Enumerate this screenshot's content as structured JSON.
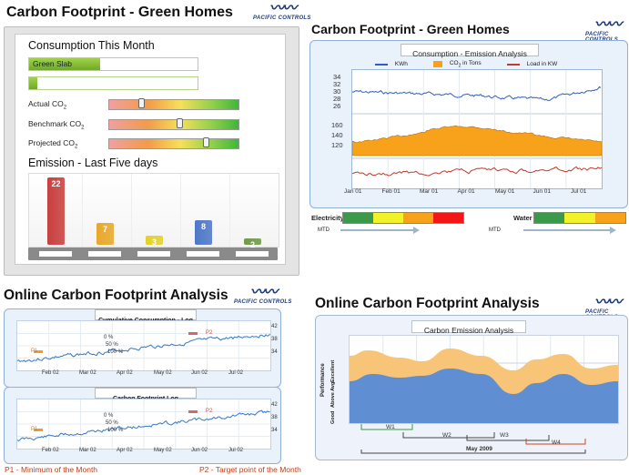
{
  "logo": {
    "text": "PACIFIC CONTROLS"
  },
  "panel1": {
    "title": "Carbon Footprint - Green Homes",
    "consumption_title": "Consumption This Month",
    "slab_label": "Green Slab",
    "slab_fill": 0.42,
    "second_slab_fill": 0.05,
    "gauges": [
      {
        "label": "Actual CO",
        "sub": "2",
        "level": 0.25
      },
      {
        "label": "Benchmark CO",
        "sub": "2",
        "level": 0.55
      },
      {
        "label": "Projected CO",
        "sub": "2",
        "level": 0.75
      }
    ],
    "emission_title": "Emission - Last Five days",
    "bars": [
      {
        "label": "22",
        "value": 22,
        "color": "#c8403f"
      },
      {
        "label": "7",
        "value": 7,
        "color": "#e8a82b"
      },
      {
        "label": "3",
        "value": 3,
        "color": "#e3d12a"
      },
      {
        "label": "8",
        "value": 8,
        "color": "#4f78c8"
      },
      {
        "label": "2",
        "value": 2,
        "color": "#6f9a48"
      }
    ]
  },
  "panel2": {
    "title": "Carbon Footprint - Green Homes",
    "chart_title": "Consumption - Emission Analysis",
    "legend": [
      "KWh",
      "CO",
      "2",
      " in Tons",
      "Load in KW"
    ],
    "yticks_top": [
      "34",
      "32",
      "30",
      "28",
      "26"
    ],
    "yticks_mid": [
      "160",
      "140",
      "120"
    ],
    "xticks": [
      "Jan 01",
      "Feb 01",
      "Mar 01",
      "Apr 01",
      "May 01",
      "Jun 01",
      "Jul 01"
    ],
    "electricity_label": "Electricity",
    "water_label": "Water",
    "mtd": "MTD",
    "electricity_colors": [
      "#3a9a4a",
      "#f2f22a",
      "#f7a21a",
      "#f21616"
    ],
    "water_colors": [
      "#3a9a4a",
      "#f2f22a",
      "#f7a21a"
    ]
  },
  "panel3": {
    "title": "Online Carbon Footprint Analysis",
    "chart1_title": "Cumulative Consumption - Log",
    "chart2_title": "Carbon Footprint Log",
    "xticks": [
      "Feb 02",
      "Mar 02",
      "Apr 02",
      "May 02",
      "Jun 02",
      "Jul 02"
    ],
    "yticks": [
      "42",
      "38",
      "34"
    ],
    "pct_labels": [
      "0 %",
      "50 %",
      "100 %"
    ],
    "p1": "P1",
    "p2": "P2",
    "note_left": "P1 - Minimum of the Month",
    "note_right": "P2 - Target point of the Month"
  },
  "panel4": {
    "title": "Online Carbon Footprint Analysis",
    "chart_title": "Carbon Emission Analysis",
    "ylabel": "Performance",
    "levels": [
      "Excellent",
      "Above Avg.",
      "Good"
    ],
    "weeks": [
      "W1",
      "W2",
      "W3",
      "W4"
    ],
    "month": "May 2009"
  }
}
